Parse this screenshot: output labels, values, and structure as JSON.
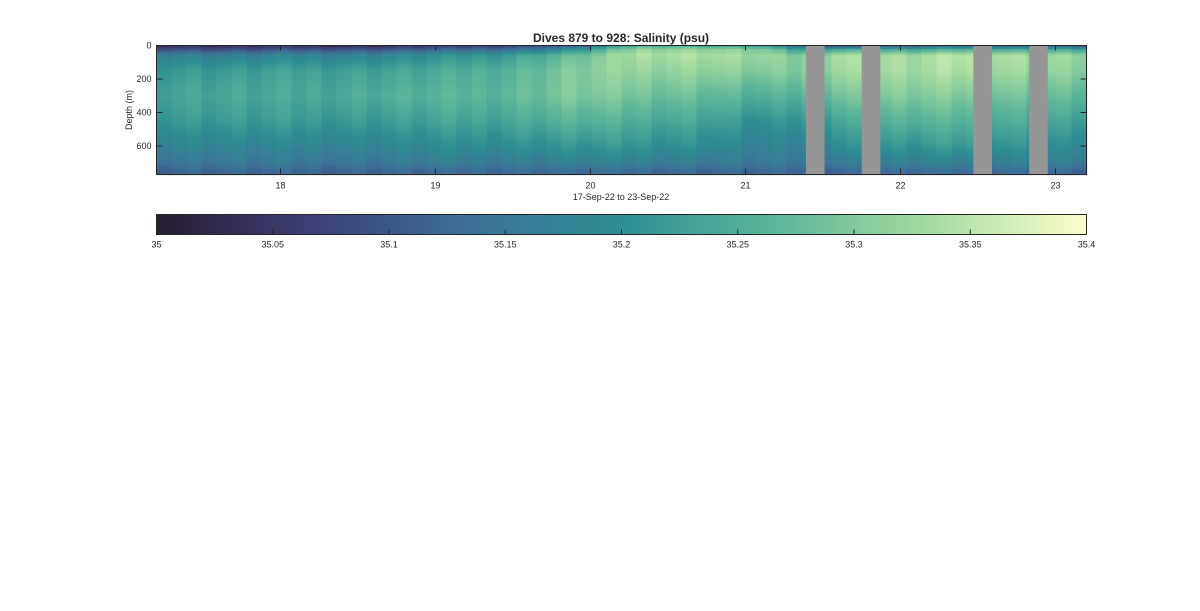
{
  "chart_data": {
    "type": "heatmap",
    "title": "Dives 879 to 928: Salinity (psu)",
    "xlabel": "17-Sep-22 to 23-Sep-22",
    "ylabel": "Depth (m)",
    "x_range": [
      17.2,
      23.2
    ],
    "y_range": [
      0,
      770
    ],
    "y_reversed": true,
    "x_ticks": [
      18,
      19,
      20,
      21,
      22,
      23
    ],
    "x_tick_labels": [
      "18",
      "19",
      "20",
      "21",
      "22",
      "23"
    ],
    "y_ticks": [
      0,
      200,
      400,
      600
    ],
    "y_tick_labels": [
      "0",
      "200",
      "400",
      "600"
    ],
    "colormap": "deep-reversed",
    "colormap_stops": [
      "#281d2e",
      "#3d3f77",
      "#3c6f98",
      "#2e8f91",
      "#5cb69a",
      "#a5dca0",
      "#fdfecc"
    ],
    "missing_color": "#969696",
    "colorbar": {
      "orientation": "horizontal",
      "placement": "below",
      "range": [
        35,
        35.4
      ],
      "ticks": [
        35,
        35.05,
        35.1,
        35.15,
        35.2,
        35.25,
        35.3,
        35.35,
        35.4
      ],
      "tick_labels": [
        "35",
        "35.05",
        "35.1",
        "35.15",
        "35.2",
        "35.25",
        "35.3",
        "35.35",
        "35.4"
      ]
    },
    "data_gaps": [
      [
        21.39,
        21.51
      ],
      [
        21.75,
        21.87
      ],
      [
        22.47,
        22.59
      ],
      [
        22.83,
        22.95
      ]
    ],
    "profiles": {
      "x": [
        17.25,
        17.67,
        18.1,
        18.55,
        19.0,
        19.45,
        19.9,
        20.3,
        20.7,
        21.1,
        21.35,
        21.6,
        22.1,
        22.4,
        22.7,
        23.1
      ],
      "depths": [
        0,
        25,
        60,
        150,
        300,
        450,
        600,
        700,
        750
      ],
      "salinity": [
        [
          35.04,
          35.1,
          35.18,
          35.22,
          35.24,
          35.22,
          35.18,
          35.15,
          35.12
        ],
        [
          35.03,
          35.09,
          35.17,
          35.22,
          35.24,
          35.22,
          35.18,
          35.15,
          35.12
        ],
        [
          35.04,
          35.1,
          35.18,
          35.23,
          35.24,
          35.22,
          35.18,
          35.15,
          35.12
        ],
        [
          35.03,
          35.1,
          35.18,
          35.23,
          35.25,
          35.22,
          35.18,
          35.15,
          35.12
        ],
        [
          35.05,
          35.12,
          35.2,
          35.24,
          35.26,
          35.23,
          35.19,
          35.16,
          35.12
        ],
        [
          35.06,
          35.14,
          35.22,
          35.26,
          35.27,
          35.24,
          35.2,
          35.16,
          35.13
        ],
        [
          35.1,
          35.2,
          35.28,
          35.3,
          35.3,
          35.26,
          35.21,
          35.17,
          35.13
        ],
        [
          35.25,
          35.32,
          35.34,
          35.32,
          35.29,
          35.25,
          35.21,
          35.17,
          35.13
        ],
        [
          35.24,
          35.32,
          35.34,
          35.32,
          35.28,
          35.24,
          35.2,
          35.16,
          35.12
        ],
        [
          35.22,
          35.3,
          35.32,
          35.3,
          35.25,
          35.2,
          35.17,
          35.15,
          35.12
        ],
        [
          35.12,
          35.22,
          35.3,
          35.3,
          35.26,
          35.21,
          35.17,
          35.15,
          35.12
        ],
        [
          35.08,
          35.25,
          35.34,
          35.33,
          35.29,
          35.24,
          35.2,
          35.16,
          35.12
        ],
        [
          35.1,
          35.24,
          35.33,
          35.33,
          35.3,
          35.26,
          35.21,
          35.17,
          35.13
        ],
        [
          35.12,
          35.26,
          35.35,
          35.34,
          35.3,
          35.26,
          35.22,
          35.17,
          35.13
        ],
        [
          35.1,
          35.25,
          35.34,
          35.33,
          35.29,
          35.25,
          35.21,
          35.17,
          35.13
        ],
        [
          35.1,
          35.24,
          35.32,
          35.31,
          35.27,
          35.23,
          35.19,
          35.16,
          35.12
        ]
      ]
    }
  }
}
